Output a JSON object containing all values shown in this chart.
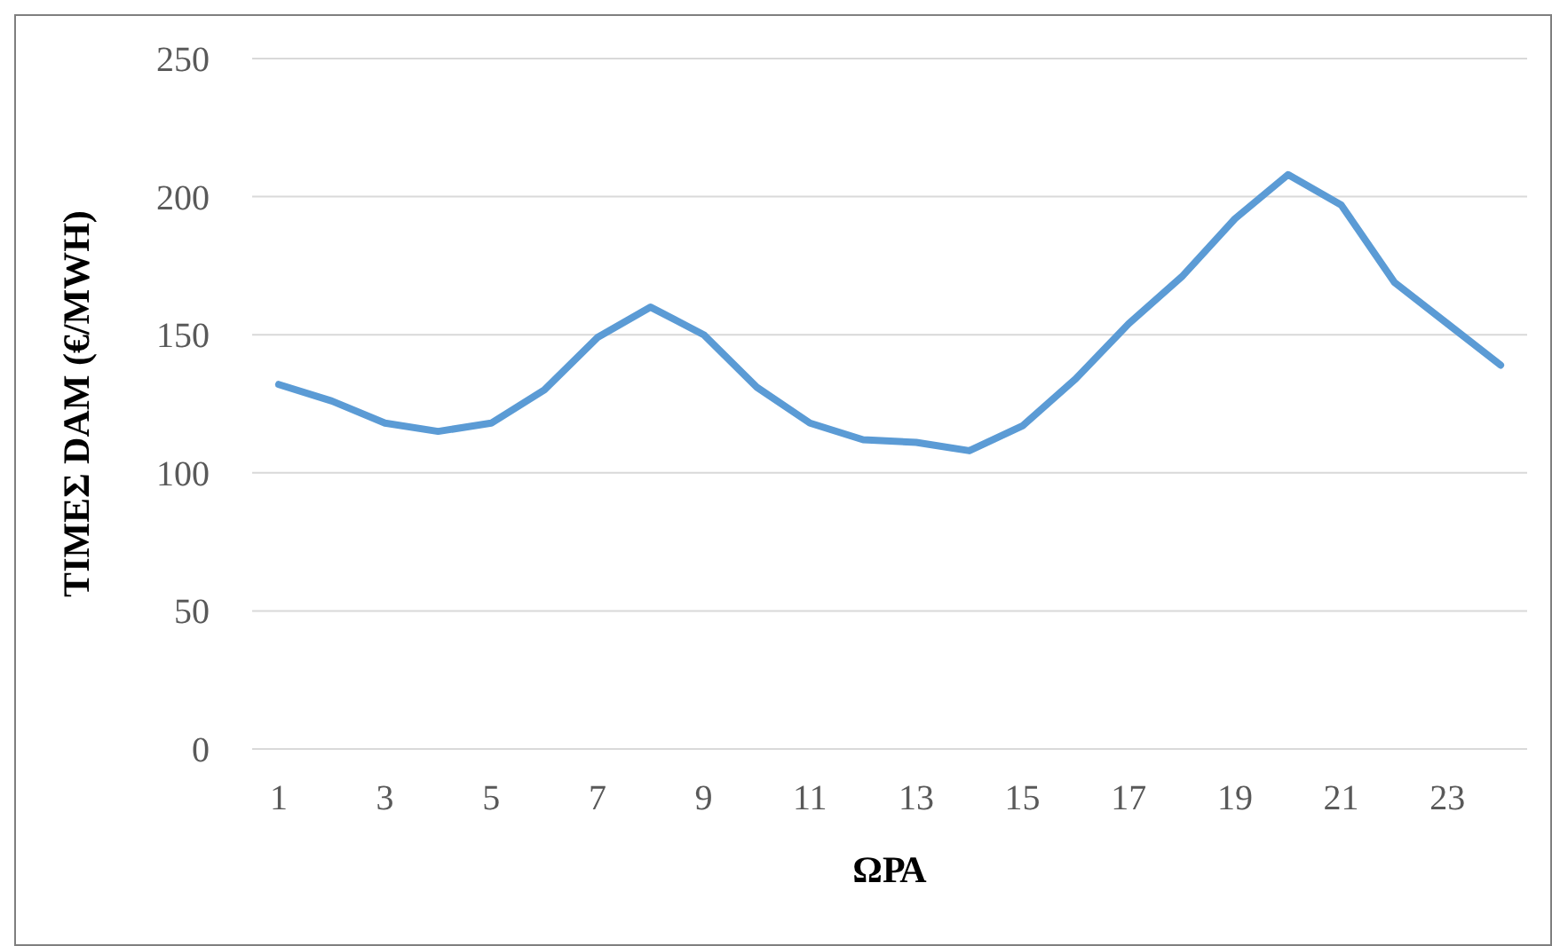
{
  "chart_data": {
    "type": "line",
    "xlabel": "ΩΡΑ",
    "ylabel": "ΤΙΜΕΣ DAM (€/MWH)",
    "x": [
      1,
      2,
      3,
      4,
      5,
      6,
      7,
      8,
      9,
      10,
      11,
      12,
      13,
      14,
      15,
      16,
      17,
      18,
      19,
      20,
      21,
      22,
      23,
      24
    ],
    "series": [
      {
        "color": "#5b9bd5",
        "values": [
          132,
          126,
          118,
          115,
          118,
          130,
          149,
          160,
          150,
          131,
          118,
          112,
          111,
          108,
          117,
          134,
          154,
          171,
          192,
          208,
          197,
          169,
          154,
          139
        ]
      }
    ],
    "xlim": [
      0.5,
      24.5
    ],
    "xticks": [
      1,
      3,
      5,
      7,
      9,
      11,
      13,
      15,
      17,
      19,
      21,
      23
    ],
    "ylim": [
      0,
      250
    ],
    "yticks": [
      0,
      50,
      100,
      150,
      200,
      250
    ],
    "grid": "y",
    "marker": "none",
    "line_style": "solid"
  }
}
